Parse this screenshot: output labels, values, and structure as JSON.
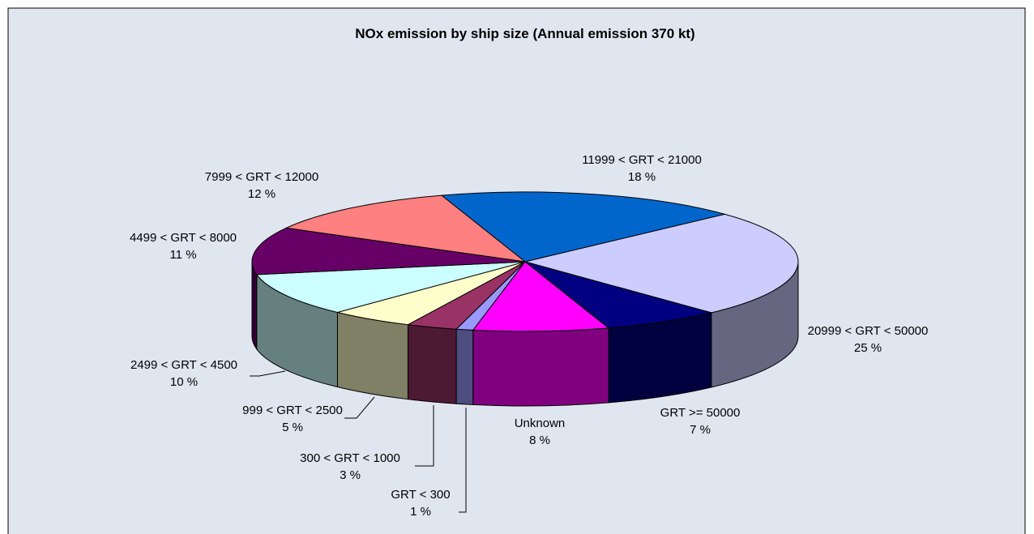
{
  "chart_data": {
    "type": "pie3d",
    "title": "NOx emission by ship size (Annual emission 370 kt)",
    "categories": [
      "11999 < GRT < 21000",
      "20999 < GRT < 50000",
      "GRT >= 50000",
      "Unknown",
      "GRT < 300",
      "300 < GRT < 1000",
      "999 < GRT < 2500",
      "2499 < GRT < 4500",
      "4499 < GRT < 8000",
      "7999 < GRT < 12000"
    ],
    "values": [
      18,
      25,
      7,
      8,
      1,
      3,
      5,
      10,
      11,
      12
    ],
    "value_labels": [
      "18 %",
      "25 %",
      "7 %",
      "8 %",
      "1 %",
      "3 %",
      "5 %",
      "10 %",
      "11 %",
      "12 %"
    ],
    "colors": [
      "#0066cc",
      "#ccccff",
      "#000080",
      "#ff00ff",
      "#9999ff",
      "#993366",
      "#ffffcc",
      "#ccffff",
      "#660066",
      "#ff8080"
    ]
  }
}
